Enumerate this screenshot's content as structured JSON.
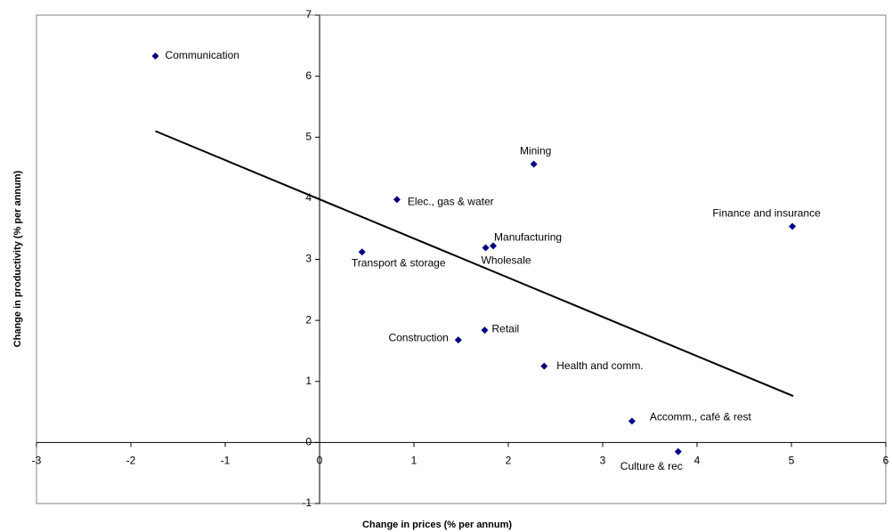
{
  "chart_data": {
    "type": "scatter",
    "xlabel": "Change in prices (% per annum)",
    "ylabel": "Change in productivity (% per annum)",
    "xlim": [
      -3,
      6
    ],
    "ylim": [
      -1,
      7
    ],
    "xticks": [
      -3,
      -2,
      -1,
      0,
      1,
      2,
      3,
      4,
      5,
      6
    ],
    "yticks": [
      -1,
      0,
      1,
      2,
      3,
      4,
      5,
      6,
      7
    ],
    "color": "#000080",
    "points": {
      "labels": [
        "Communication",
        "Mining",
        "Elec., gas & water",
        "Finance and insurance",
        "Manufacturing",
        "Wholesale",
        "Transport & storage",
        "Retail",
        "Construction",
        "Health and comm.",
        "Accomm., café & rest",
        "Culture & rec"
      ],
      "x": [
        -1.74,
        2.27,
        0.82,
        5.01,
        1.84,
        1.76,
        0.45,
        1.75,
        1.47,
        2.38,
        3.31,
        3.8
      ],
      "y": [
        6.33,
        4.56,
        3.98,
        3.54,
        3.22,
        3.19,
        3.12,
        1.84,
        1.68,
        1.25,
        0.35,
        -0.15
      ]
    },
    "trendline": {
      "x": [
        -1.74,
        5.02
      ],
      "y": [
        5.1,
        0.76
      ],
      "color": "#000000"
    }
  }
}
